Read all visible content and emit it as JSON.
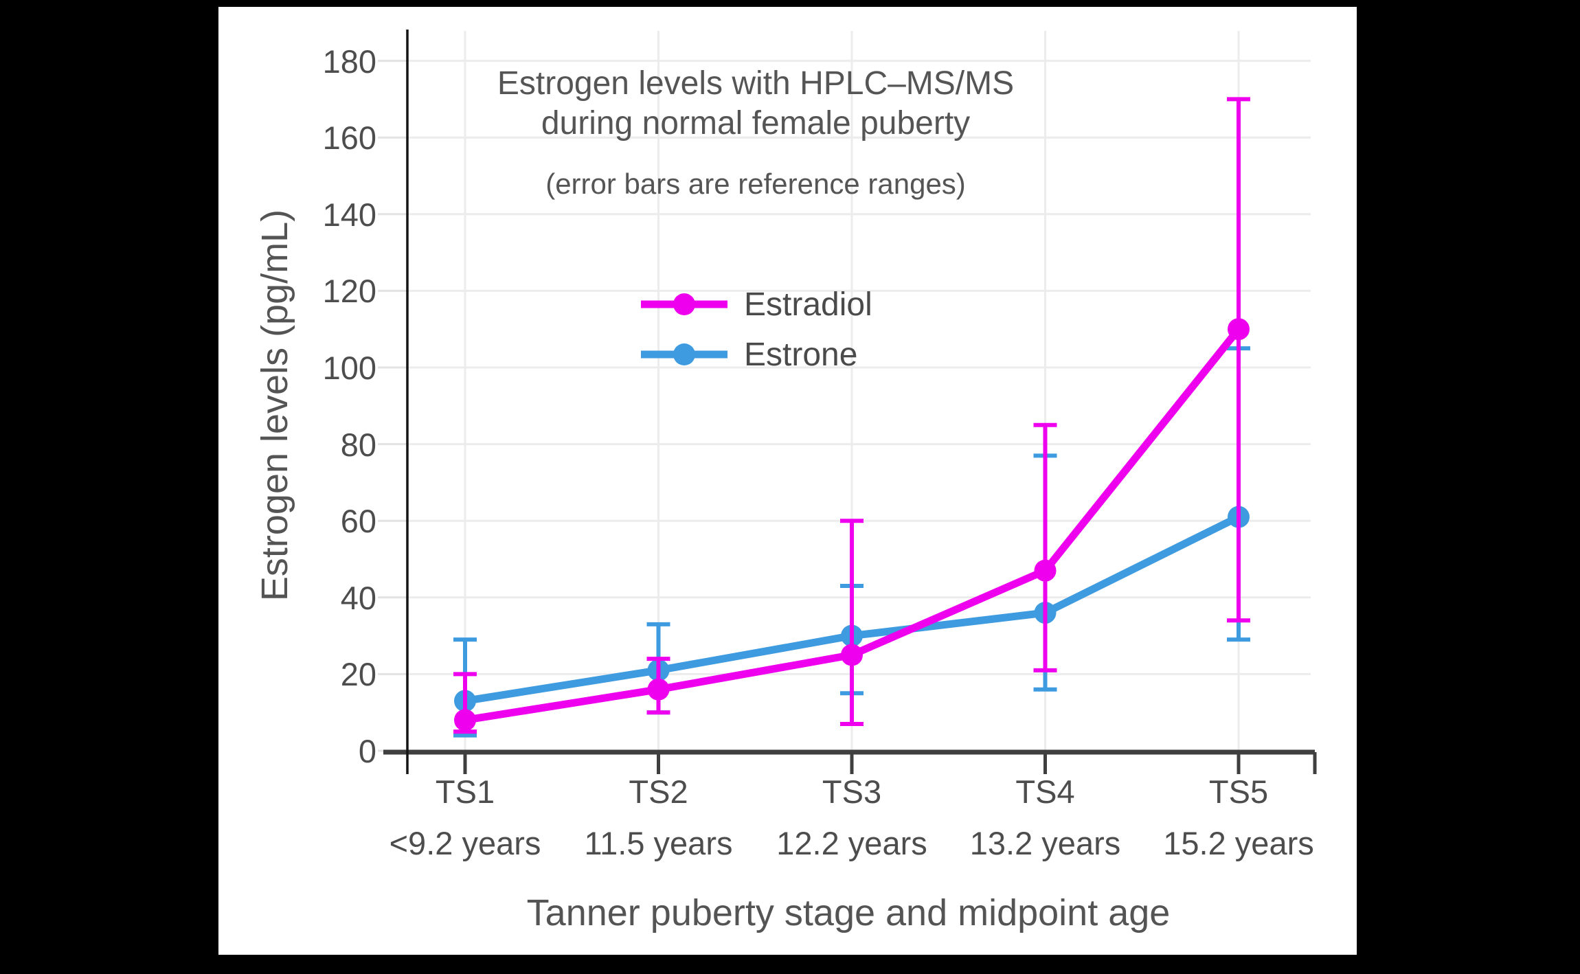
{
  "canvas": {
    "background": "#000000",
    "panel": "#ffffff"
  },
  "chart_data": {
    "type": "line",
    "title_line1": "Estrogen levels with HPLC–MS/MS",
    "title_line2": "during normal female puberty",
    "subtitle": "(error bars are reference ranges)",
    "xlabel": "Tanner puberty stage and midpoint age",
    "ylabel": "Estrogen levels (pg/mL)",
    "categories": [
      "TS1",
      "TS2",
      "TS3",
      "TS4",
      "TS5"
    ],
    "category_ages": [
      "<9.2 years",
      "11.5 years",
      "12.2 years",
      "13.2 years",
      "15.2 years"
    ],
    "yticks": [
      0,
      20,
      40,
      60,
      80,
      100,
      120,
      140,
      160,
      180
    ],
    "ylim": [
      0,
      180
    ],
    "grid": true,
    "legend": {
      "position": "inside-upper-center",
      "entries": [
        "Estradiol",
        "Estrone"
      ]
    },
    "series": [
      {
        "name": "Estradiol",
        "color": "#EE00EE",
        "values": [
          8,
          16,
          25,
          47,
          110
        ],
        "err_low": [
          5,
          10,
          7,
          21,
          34
        ],
        "err_high": [
          20,
          24,
          60,
          85,
          170
        ]
      },
      {
        "name": "Estrone",
        "color": "#3E9BE0",
        "values": [
          13,
          21,
          30,
          36,
          61
        ],
        "err_low": [
          4,
          10,
          15,
          16,
          29
        ],
        "err_high": [
          29,
          33,
          43,
          77,
          105
        ]
      }
    ],
    "colors": {
      "grid": "#ECECEC",
      "y_axis": "#141414",
      "x_axis": "#3F3F3F",
      "text": "#555555",
      "tick_text": "#4d4d4d"
    }
  }
}
